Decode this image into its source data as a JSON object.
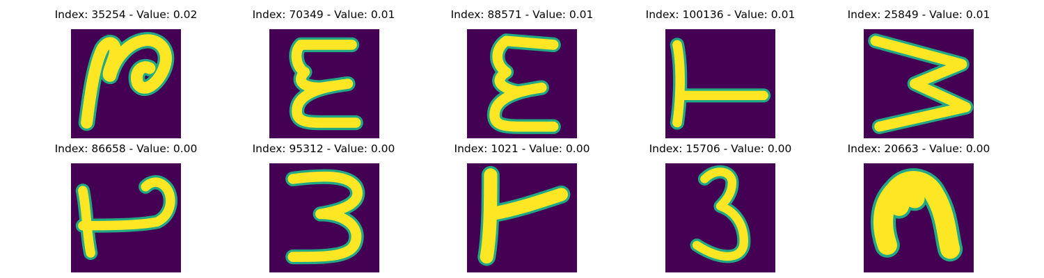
{
  "colors": {
    "background": "#440154",
    "stroke": "#fde725",
    "edge": "#22a884"
  },
  "panels": [
    {
      "title": "Index: 35254 - Value: 0.02",
      "glyph": "glyph-2"
    },
    {
      "title": "Index: 70349 - Value: 0.01",
      "glyph": "glyph-epsilon"
    },
    {
      "title": "Index: 88571 - Value: 0.01",
      "glyph": "glyph-epsilon"
    },
    {
      "title": "Index: 100136 - Value: 0.01",
      "glyph": "glyph-rotated-t"
    },
    {
      "title": "Index: 25849 - Value: 0.01",
      "glyph": "glyph-w-rotated"
    },
    {
      "title": "Index: 86658 - Value: 0.00",
      "glyph": "glyph-curl"
    },
    {
      "title": "Index: 95312 - Value: 0.00",
      "glyph": "glyph-3"
    },
    {
      "title": "Index: 1021 - Value: 0.00",
      "glyph": "glyph-rotated-t"
    },
    {
      "title": "Index: 15706 - Value: 0.00",
      "glyph": "glyph-3"
    },
    {
      "title": "Index: 20663 - Value: 0.00",
      "glyph": "glyph-n"
    }
  ]
}
